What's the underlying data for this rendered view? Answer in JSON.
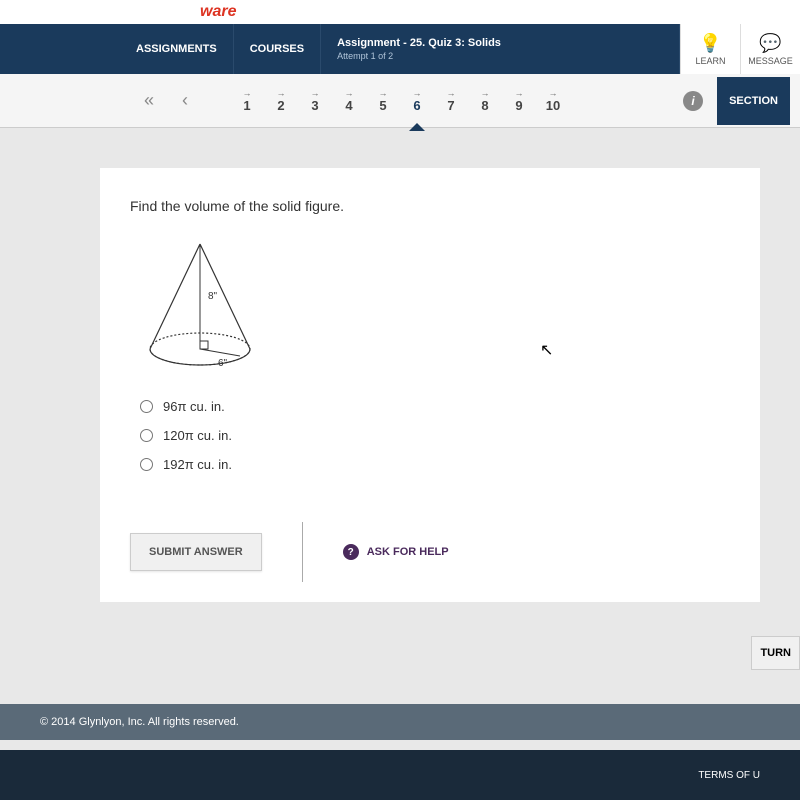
{
  "logo_suffix": "ware",
  "nav": {
    "assignments": "ASSIGNMENTS",
    "courses": "COURSES",
    "assignment_label": "Assignment",
    "assignment_title": "- 25. Quiz 3: Solids",
    "attempt": "Attempt 1 of 2",
    "learn": "LEARN",
    "message": "MESSAGE"
  },
  "pager": {
    "numbers": [
      "1",
      "2",
      "3",
      "4",
      "5",
      "6",
      "7",
      "8",
      "9",
      "10"
    ],
    "active_index": 5,
    "section": "SECTION"
  },
  "question": {
    "text": "Find the volume of the solid figure.",
    "figure": {
      "type": "cone",
      "slant_label": "8\"",
      "radius_label": "6\"",
      "stroke": "#333333",
      "fill": "#ffffff"
    },
    "options": [
      "96π cu. in.",
      "120π cu. in.",
      "192π cu. in."
    ]
  },
  "buttons": {
    "submit": "SUBMIT ANSWER",
    "help": "ASK FOR HELP",
    "turn": "TURN"
  },
  "footer": {
    "copyright": "© 2014 Glynlyon, Inc. All rights reserved.",
    "terms": "TERMS OF U"
  },
  "colors": {
    "nav_bg": "#1a3a5c",
    "accent": "#4a2a5c",
    "footer_gray": "#5a6a78",
    "footer_dark": "#1a2a3a"
  }
}
